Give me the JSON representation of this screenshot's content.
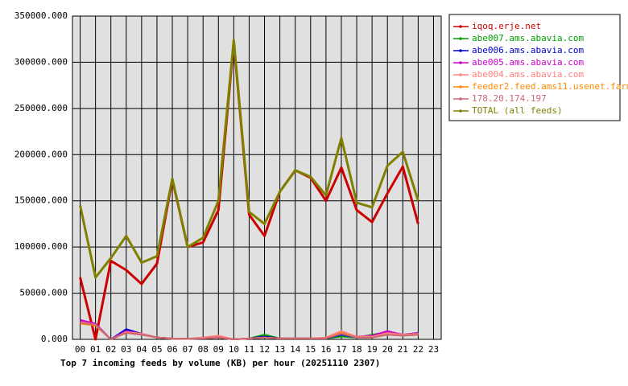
{
  "chart_data": {
    "type": "line",
    "title": "Top 7 incoming feeds by volume (KB) per hour (20251110 2307)",
    "categories": [
      "00",
      "01",
      "02",
      "03",
      "04",
      "05",
      "06",
      "07",
      "08",
      "09",
      "10",
      "11",
      "12",
      "13",
      "14",
      "15",
      "16",
      "17",
      "18",
      "19",
      "20",
      "21",
      "22",
      "23"
    ],
    "ylim": [
      0,
      350000
    ],
    "yticks": [
      {
        "value": 0,
        "label": "0.000"
      },
      {
        "value": 50000,
        "label": "50000.000"
      },
      {
        "value": 100000,
        "label": "100000.000"
      },
      {
        "value": 150000,
        "label": "150000.000"
      },
      {
        "value": 200000,
        "label": "200000.000"
      },
      {
        "value": 250000,
        "label": "250000.000"
      },
      {
        "value": 300000,
        "label": "300000.000"
      },
      {
        "value": 350000,
        "label": "350000.000"
      }
    ],
    "grid": true,
    "legend": "right",
    "series": [
      {
        "name": "iqoq.erje.net",
        "color": "#cc0000",
        "values": [
          67000,
          0,
          85000,
          75000,
          60000,
          82000,
          173000,
          100000,
          105000,
          140000,
          322000,
          135000,
          112000,
          160000,
          183000,
          175000,
          150000,
          186000,
          140000,
          127000,
          158000,
          187000,
          125000,
          null
        ]
      },
      {
        "name": "abe007.ams.abavia.com",
        "color": "#00a000",
        "values": [
          18000,
          15000,
          0,
          8000,
          6000,
          2000,
          1000,
          500,
          1000,
          2000,
          0,
          1000,
          5000,
          1000,
          1000,
          1000,
          1000,
          3000,
          2000,
          5000,
          8000,
          5000,
          7000,
          null
        ]
      },
      {
        "name": "abe006.ams.abavia.com",
        "color": "#0000cc",
        "values": [
          20000,
          17000,
          0,
          11000,
          6000,
          2000,
          1000,
          500,
          1000,
          2000,
          0,
          1000,
          3000,
          1000,
          1000,
          1000,
          1000,
          5000,
          2000,
          4000,
          8000,
          5000,
          7000,
          null
        ]
      },
      {
        "name": "abe005.ams.abavia.com",
        "color": "#cc00cc",
        "values": [
          21000,
          17000,
          0,
          9000,
          6000,
          2000,
          1000,
          500,
          2000,
          3000,
          0,
          1000,
          2000,
          1000,
          1000,
          1000,
          1000,
          7000,
          3000,
          4000,
          9000,
          5000,
          7000,
          null
        ]
      },
      {
        "name": "abe004.ams.abavia.com",
        "color": "#ff8080",
        "values": [
          19000,
          16000,
          0,
          8000,
          6000,
          2000,
          1000,
          500,
          2000,
          4000,
          0,
          1000,
          2000,
          1000,
          1000,
          1000,
          2000,
          9000,
          3000,
          3000,
          7000,
          5000,
          6000,
          null
        ]
      },
      {
        "name": "feeder2.feed.ams11.usenet.farm",
        "color": "#ff8800",
        "values": [
          17000,
          15000,
          0,
          7000,
          5000,
          2000,
          500,
          500,
          1000,
          2000,
          0,
          1000,
          2000,
          1000,
          1000,
          1000,
          1000,
          7000,
          2000,
          2000,
          5000,
          4000,
          5000,
          null
        ]
      },
      {
        "name": "178.20.174.197",
        "color": "#cc6677",
        "values": [
          18000,
          16000,
          0,
          7000,
          5000,
          2000,
          500,
          500,
          1000,
          2000,
          0,
          1000,
          2000,
          1000,
          1000,
          1000,
          1000,
          6000,
          2000,
          2000,
          5000,
          4000,
          5000,
          null
        ]
      },
      {
        "name": "TOTAL (all feeds)",
        "color": "#808000",
        "values": [
          145000,
          67000,
          88000,
          112000,
          83000,
          90000,
          174000,
          100000,
          110000,
          150000,
          324000,
          138000,
          125000,
          160000,
          183000,
          176000,
          156000,
          218000,
          148000,
          143000,
          188000,
          203000,
          150000,
          null
        ]
      }
    ]
  }
}
